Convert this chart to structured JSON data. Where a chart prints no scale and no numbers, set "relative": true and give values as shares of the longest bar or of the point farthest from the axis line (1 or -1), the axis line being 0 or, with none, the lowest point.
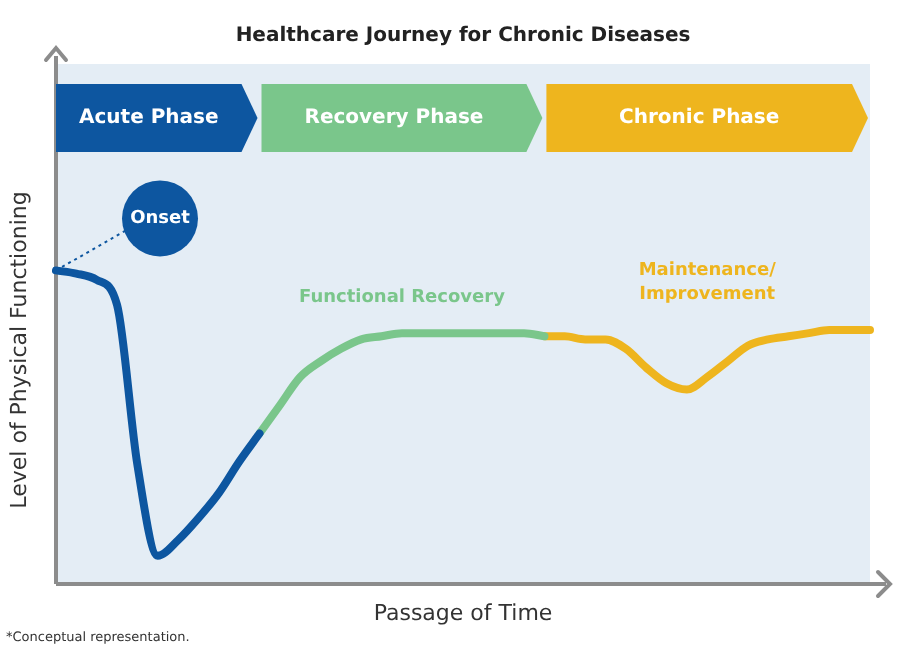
{
  "chart_data": {
    "type": "line",
    "title": "Healthcare Journey for Chronic Diseases",
    "xlabel": "Passage of Time",
    "ylabel": "Level of Physical Functioning",
    "relative": true,
    "legend": false,
    "marker": "none",
    "line_style": "solid",
    "categories": [
      null,
      null,
      null,
      null,
      null,
      null,
      null,
      null,
      null,
      null,
      null,
      null,
      null,
      null,
      null,
      null,
      null,
      null,
      null,
      null,
      null,
      null,
      null,
      null,
      null,
      null,
      null,
      null,
      null,
      null,
      null,
      null,
      null,
      null,
      null,
      null,
      null,
      null,
      null,
      null,
      null
    ],
    "series": [
      {
        "color": "#0d56a0",
        "values": [
          1,
          0.99,
          0.97,
          0.89,
          0.38,
          0.09,
          0.14,
          0.21,
          0.29,
          0.39,
          0.48,
          null,
          null,
          null,
          null,
          null,
          null,
          null,
          null,
          null,
          null,
          null,
          null,
          null,
          null,
          null,
          null,
          null,
          null,
          null,
          null,
          null,
          null,
          null,
          null,
          null,
          null,
          null,
          null,
          null,
          null
        ]
      },
      {
        "name": "Functional Recovery",
        "color": "#7ac68b",
        "values": [
          null,
          null,
          null,
          null,
          null,
          null,
          null,
          null,
          null,
          null,
          0.48,
          0.57,
          0.66,
          0.71,
          0.75,
          0.78,
          0.79,
          0.8,
          0.8,
          0.8,
          0.8,
          0.8,
          0.8,
          0.8,
          0.79,
          null,
          null,
          null,
          null,
          null,
          null,
          null,
          null,
          null,
          null,
          null,
          null,
          null,
          null,
          null,
          null
        ]
      },
      {
        "name": "Maintenance/ Improvement",
        "color": "#eeb51e",
        "values": [
          null,
          null,
          null,
          null,
          null,
          null,
          null,
          null,
          null,
          null,
          null,
          null,
          null,
          null,
          null,
          null,
          null,
          null,
          null,
          null,
          null,
          null,
          null,
          null,
          0.79,
          0.79,
          0.78,
          0.78,
          0.75,
          0.69,
          0.64,
          0.62,
          0.66,
          0.71,
          0.76,
          0.78,
          0.79,
          0.8,
          0.81,
          0.81,
          0.81
        ]
      }
    ],
    "annotations": [
      "Acute Phase",
      "Recovery Phase",
      "Chronic Phase",
      "Onset",
      "*Conceptual representation."
    ]
  }
}
